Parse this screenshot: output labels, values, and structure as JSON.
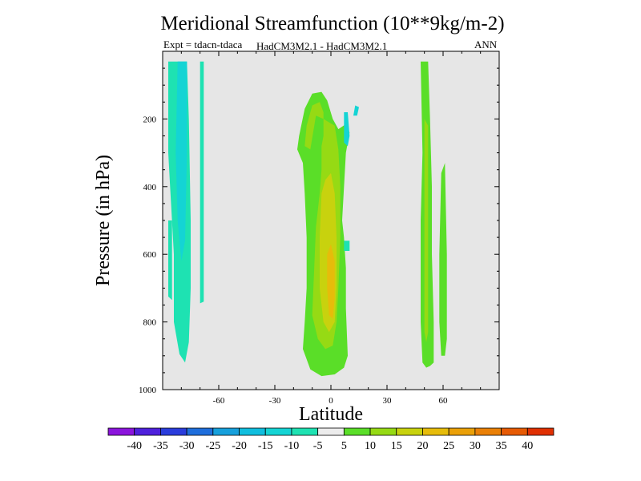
{
  "chart_data": {
    "type": "contour",
    "title": "Meridional Streamfunction (10**9kg/m-2)",
    "subtitle_left": "Expt = tdacn-tdaca",
    "subtitle_center": "HadCM3M2.1 - HadCM3M2.1",
    "subtitle_right": "ANN",
    "xlabel": "Latitude",
    "ylabel": "Pressure (in hPa)",
    "xlim": [
      -90,
      90
    ],
    "ylim": [
      1000,
      0
    ],
    "xticks": [
      -60,
      -30,
      0,
      30,
      60
    ],
    "yticks": [
      200,
      400,
      600,
      800,
      1000
    ],
    "background_color": "#e6e6e6",
    "colorbar": {
      "levels": [
        -40,
        -35,
        -30,
        -25,
        -20,
        -15,
        -10,
        -5,
        5,
        10,
        15,
        20,
        25,
        30,
        35,
        40
      ],
      "labels": [
        "-40",
        "-35",
        "-30",
        "-25",
        "-20",
        "-15",
        "-10",
        "-5",
        "5",
        "10",
        "15",
        "20",
        "25",
        "30",
        "35",
        "40"
      ],
      "colors": [
        "#8b14dc",
        "#4e20dc",
        "#2a3cdc",
        "#1e6edc",
        "#16a0dc",
        "#10bede",
        "#14d4d4",
        "#1ee2b2",
        "#ececec",
        "#5ade28",
        "#96da14",
        "#c8d20e",
        "#e6bc0a",
        "#eaa008",
        "#ea8006",
        "#e65a04",
        "#e03002"
      ]
    },
    "regions": [
      {
        "name": "sh-negative-cell-outer",
        "level": -5,
        "points": [
          [
            -87,
            30
          ],
          [
            -77,
            30
          ],
          [
            -76,
            200
          ],
          [
            -75,
            500
          ],
          [
            -75,
            700
          ],
          [
            -76,
            860
          ],
          [
            -78,
            920
          ],
          [
            -81,
            895
          ],
          [
            -84,
            800
          ],
          [
            -84,
            600
          ],
          [
            -86,
            400
          ],
          [
            -87,
            300
          ]
        ]
      },
      {
        "name": "sh-negative-cell-core",
        "level": -10,
        "points": [
          [
            -82,
            30
          ],
          [
            -77,
            30
          ],
          [
            -77,
            300
          ],
          [
            -78,
            560
          ],
          [
            -80,
            620
          ],
          [
            -82,
            500
          ],
          [
            -83,
            300
          ]
        ]
      },
      {
        "name": "sh-negative-cell-left",
        "level": -5,
        "points": [
          [
            -87,
            500
          ],
          [
            -85,
            500
          ],
          [
            -85,
            735
          ],
          [
            -87,
            725
          ]
        ]
      },
      {
        "name": "sh-negative-filament",
        "level": -5,
        "points": [
          [
            -70,
            30
          ],
          [
            -68,
            30
          ],
          [
            -68,
            600
          ],
          [
            -68,
            740
          ],
          [
            -70,
            745
          ],
          [
            -70,
            600
          ]
        ]
      },
      {
        "name": "tropical-cell-outer",
        "level": 5,
        "points": [
          [
            -17,
            250
          ],
          [
            -14,
            170
          ],
          [
            -10,
            125
          ],
          [
            -5,
            120
          ],
          [
            -2,
            145
          ],
          [
            1,
            200
          ],
          [
            4,
            230
          ],
          [
            8,
            215
          ],
          [
            10,
            240
          ],
          [
            8,
            300
          ],
          [
            6,
            500
          ],
          [
            7,
            550
          ],
          [
            8,
            640
          ],
          [
            8,
            760
          ],
          [
            9,
            900
          ],
          [
            7,
            935
          ],
          [
            2,
            955
          ],
          [
            -5,
            960
          ],
          [
            -11,
            940
          ],
          [
            -15,
            880
          ],
          [
            -14,
            800
          ],
          [
            -13,
            700
          ],
          [
            -13,
            550
          ],
          [
            -14,
            420
          ],
          [
            -15,
            330
          ],
          [
            -18,
            290
          ]
        ]
      },
      {
        "name": "tropical-cell-15",
        "level": 10,
        "points": [
          [
            -13,
            220
          ],
          [
            -10,
            160
          ],
          [
            -6,
            150
          ],
          [
            -4,
            180
          ],
          [
            -4,
            250
          ],
          [
            -5,
            280
          ],
          [
            -5,
            350
          ],
          [
            -6,
            420
          ],
          [
            -8,
            520
          ],
          [
            -9,
            650
          ],
          [
            -10,
            780
          ],
          [
            -7,
            850
          ],
          [
            -3,
            880
          ],
          [
            1,
            870
          ],
          [
            3,
            800
          ],
          [
            4,
            700
          ],
          [
            5,
            550
          ],
          [
            5,
            400
          ],
          [
            4,
            290
          ],
          [
            2,
            220
          ],
          [
            -1,
            210
          ],
          [
            -4,
            200
          ],
          [
            -8,
            190
          ],
          [
            -11,
            290
          ],
          [
            -14,
            280
          ]
        ]
      },
      {
        "name": "tropical-cell-20",
        "level": 15,
        "points": [
          [
            -5,
            420
          ],
          [
            -3,
            380
          ],
          [
            0,
            360
          ],
          [
            2,
            420
          ],
          [
            3,
            550
          ],
          [
            3,
            700
          ],
          [
            2,
            800
          ],
          [
            -1,
            830
          ],
          [
            -4,
            800
          ],
          [
            -6,
            700
          ],
          [
            -6,
            550
          ]
        ]
      },
      {
        "name": "tropical-cell-25",
        "level": 20,
        "points": [
          [
            -2,
            600
          ],
          [
            0,
            570
          ],
          [
            2,
            620
          ],
          [
            2,
            730
          ],
          [
            1,
            790
          ],
          [
            -1,
            780
          ],
          [
            -2,
            700
          ]
        ]
      },
      {
        "name": "tropical-hole",
        "level": -5,
        "points": [
          [
            7,
            560
          ],
          [
            10,
            560
          ],
          [
            10,
            590
          ],
          [
            7,
            590
          ]
        ]
      },
      {
        "name": "tropical-blob-1",
        "level": -10,
        "points": [
          [
            7,
            180
          ],
          [
            9,
            180
          ],
          [
            10,
            250
          ],
          [
            9,
            280
          ],
          [
            7,
            270
          ]
        ]
      },
      {
        "name": "tropical-blob-2",
        "level": -10,
        "points": [
          [
            13,
            160
          ],
          [
            15,
            165
          ],
          [
            14,
            190
          ],
          [
            12,
            190
          ]
        ]
      },
      {
        "name": "nh-cell-tall",
        "level": 5,
        "points": [
          [
            48,
            30
          ],
          [
            52,
            30
          ],
          [
            53,
            200
          ],
          [
            54,
            400
          ],
          [
            54,
            600
          ],
          [
            55,
            800
          ],
          [
            55,
            920
          ],
          [
            53,
            930
          ],
          [
            51,
            935
          ],
          [
            49,
            920
          ],
          [
            48,
            800
          ],
          [
            48,
            500
          ],
          [
            49,
            300
          ]
        ]
      },
      {
        "name": "nh-cell-tall-core",
        "level": 10,
        "points": [
          [
            50,
            200
          ],
          [
            52,
            220
          ],
          [
            52,
            500
          ],
          [
            52,
            830
          ],
          [
            51,
            860
          ],
          [
            50,
            830
          ],
          [
            50,
            500
          ]
        ]
      },
      {
        "name": "nh-cell-narrow",
        "level": 5,
        "points": [
          [
            59,
            360
          ],
          [
            61,
            330
          ],
          [
            62,
            600
          ],
          [
            62,
            850
          ],
          [
            61,
            900
          ],
          [
            59,
            900
          ],
          [
            58,
            800
          ],
          [
            58,
            600
          ]
        ]
      }
    ]
  }
}
